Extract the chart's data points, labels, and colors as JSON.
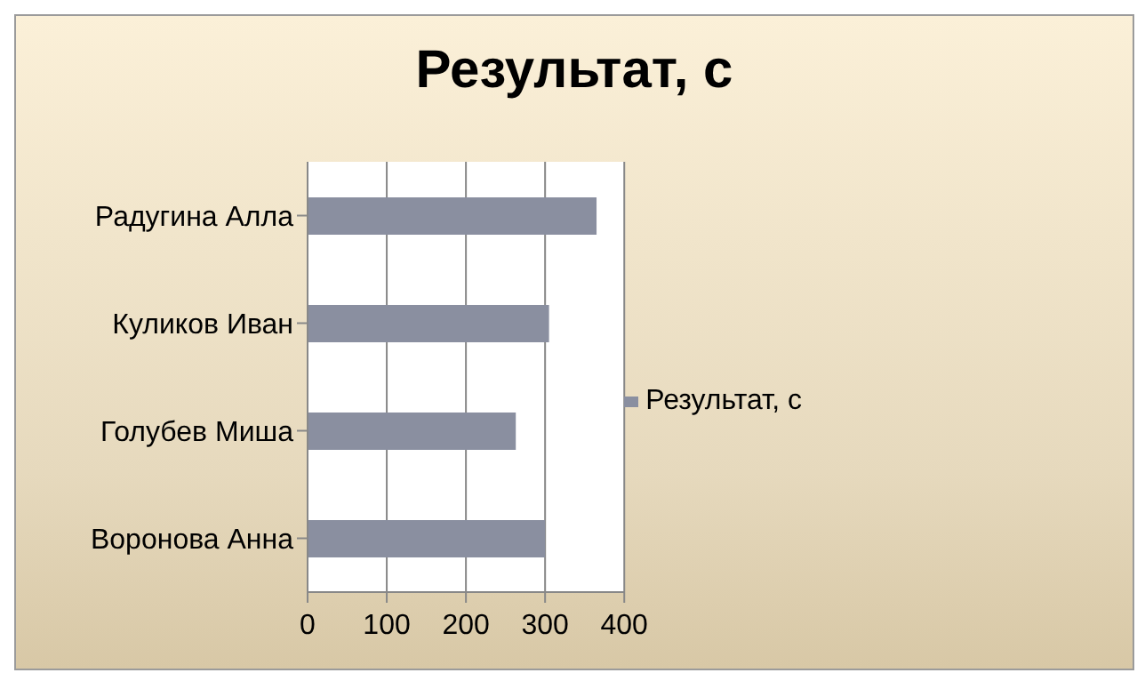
{
  "chart_data": {
    "type": "bar",
    "orientation": "horizontal",
    "title": "Результат, с",
    "categories": [
      "Радугина Алла",
      "Куликов Иван",
      "Голубев Миша",
      "Воронова Анна"
    ],
    "series": [
      {
        "name": "Результат, с",
        "color": "#8a8fa0",
        "values": [
          365,
          305,
          263,
          300
        ]
      }
    ],
    "xlim": [
      0,
      400
    ],
    "xticks": [
      0,
      100,
      200,
      300,
      400
    ],
    "grid": "x",
    "legend": "right"
  }
}
